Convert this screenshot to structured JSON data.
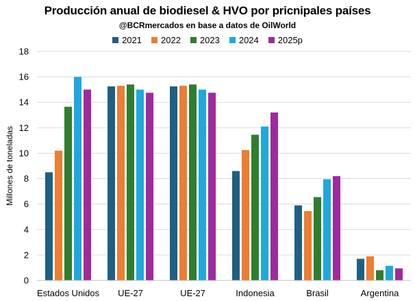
{
  "chart_data": {
    "type": "bar",
    "title": "Producción anual de biodiesel & HVO por pricnipales países",
    "subtitle": "@BCRmercados en base a datos de OilWorld",
    "xlabel": "",
    "ylabel": "Millones de toneladas",
    "ylim": [
      0,
      18
    ],
    "yticks": [
      0,
      2,
      4,
      6,
      8,
      10,
      12,
      14,
      16,
      18
    ],
    "grid": true,
    "legend_position": "top-center",
    "categories": [
      "Estados Unidos",
      "UE-27",
      "UE-27",
      "Indonesia",
      "Brasil",
      "Argentina"
    ],
    "series": [
      {
        "name": "2021",
        "color": "#1f5f84",
        "values": [
          8.5,
          15.25,
          15.25,
          8.6,
          5.9,
          1.7
        ]
      },
      {
        "name": "2022",
        "color": "#ed7d31",
        "values": [
          10.2,
          15.3,
          15.3,
          10.25,
          5.45,
          1.9
        ]
      },
      {
        "name": "2023",
        "color": "#2f7d2f",
        "values": [
          13.65,
          15.4,
          15.4,
          11.45,
          6.55,
          0.8
        ]
      },
      {
        "name": "2024",
        "color": "#1fa8de",
        "values": [
          16.0,
          15.0,
          15.0,
          12.1,
          7.95,
          1.15
        ]
      },
      {
        "name": "2025p",
        "color": "#9e2a9e",
        "values": [
          15.0,
          14.75,
          14.75,
          13.2,
          8.2,
          0.95
        ]
      }
    ]
  }
}
